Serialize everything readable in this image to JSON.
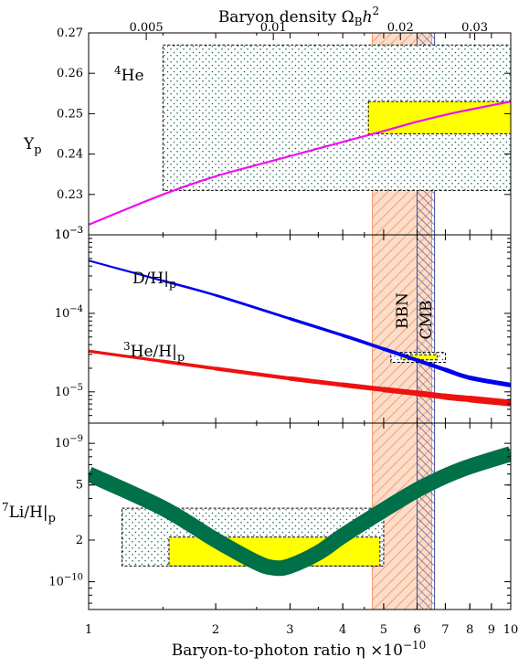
{
  "chart_data": {
    "type": "line",
    "title": "",
    "top_axis": {
      "label_text": "Baryon density",
      "label_symbol": "Ω",
      "label_sub": "B",
      "label_h": "h",
      "label_sup": "2",
      "ticks": [
        "0.005",
        "0.01",
        "0.02",
        "0.03"
      ],
      "tick_values": [
        0.005,
        0.01,
        0.02,
        0.03
      ]
    },
    "x_axis": {
      "label_text": "Baryon-to-photon ratio η",
      "label_times": "×",
      "label_exp_base": "10",
      "label_exp": "−10",
      "scale": "log",
      "xlim": [
        1,
        10
      ],
      "ticks": [
        "1",
        "2",
        "3",
        "4",
        "5",
        "6",
        "7",
        "8",
        "9",
        "10"
      ],
      "tick_values": [
        1,
        2,
        3,
        4,
        5,
        6,
        7,
        8,
        9,
        10
      ]
    },
    "vertical_bands": [
      {
        "name": "BBN",
        "x_range": [
          4.7,
          6.5
        ],
        "color": "#f29a6b"
      },
      {
        "name": "CMB",
        "x_range": [
          6.0,
          6.6
        ],
        "color": "#3a4a9a"
      }
    ],
    "panels": [
      {
        "id": "helium",
        "ylabel_main": "Y",
        "ylabel_sub": "p",
        "scale": "linear",
        "ylim": [
          0.22,
          0.27
        ],
        "ticks": [
          "0.23",
          "0.24",
          "0.25",
          "0.26",
          "0.27"
        ],
        "tick_values": [
          0.23,
          0.24,
          0.25,
          0.26,
          0.27
        ],
        "corner_tick_label": "10",
        "corner_tick_exp": "−3",
        "annotation_sup": "4",
        "annotation_text": "He",
        "series": [
          {
            "color": "#ee11ee",
            "x": [
              1,
              1.5,
              2,
              3,
              4,
              5,
              6,
              7,
              8,
              10
            ],
            "y": [
              0.2225,
              0.23,
              0.2345,
              0.2395,
              0.243,
              0.2457,
              0.248,
              0.2497,
              0.251,
              0.253
            ]
          }
        ],
        "boxes": [
          {
            "kind": "dotted",
            "x_range": [
              1.5,
              10
            ],
            "y_range": [
              0.231,
              0.267
            ]
          },
          {
            "kind": "yellow",
            "x_range": [
              4.6,
              10
            ],
            "y_range": [
              0.245,
              0.253
            ]
          }
        ]
      },
      {
        "id": "d-he3",
        "scale": "log",
        "ylim": [
          4e-06,
          0.001
        ],
        "ticks_base": [
          "10",
          "10",
          "10"
        ],
        "ticks_exp": [
          "−3",
          "−4",
          "−5"
        ],
        "tick_values": [
          0.001,
          0.0001,
          1e-05
        ],
        "series": [
          {
            "label_text": "D/H",
            "label_sub": "p",
            "color": "#0000ee",
            "x": [
              1,
              1.5,
              2,
              3,
              4,
              5,
              6,
              7,
              8,
              10
            ],
            "y": [
              0.00047,
              0.00026,
              0.00017,
              8.55e-05,
              5.25e-05,
              3.52e-05,
              2.53e-05,
              1.91e-05,
              1.51e-05,
              1.22e-05
            ]
          },
          {
            "label_sup": "3",
            "label_text": "He/H",
            "label_sub": "p",
            "color": "#ee1111",
            "x": [
              1,
              1.5,
              2,
              3,
              4,
              5,
              6,
              7,
              8,
              10
            ],
            "y": [
              3.3e-05,
              2.45e-05,
              1.98e-05,
              1.48e-05,
              1.23e-05,
              1.07e-05,
              9.6e-06,
              8.7e-06,
              8.1e-06,
              7.2e-06
            ]
          }
        ],
        "boxes": [
          {
            "kind": "dotted",
            "x_range": [
              5.2,
              7.0
            ],
            "y_range": [
              2.38e-05,
              3.18e-05
            ]
          },
          {
            "kind": "yellow",
            "x_range": [
              5.5,
              6.7
            ],
            "y_range": [
              2.56e-05,
              2.98e-05
            ]
          }
        ]
      },
      {
        "id": "lithium",
        "ylabel_sup": "7",
        "ylabel_main": "Li/H",
        "ylabel_sub": "p",
        "scale": "log",
        "ylim": [
          6.3e-11,
          1.4e-09
        ],
        "ticks": [
          "10",
          "5",
          "2",
          "10"
        ],
        "ticks_exp": [
          "−9",
          "",
          "",
          "−10"
        ],
        "tick_values": [
          1e-09,
          5e-10,
          2e-10,
          1e-10
        ],
        "series": [
          {
            "color": "#007048",
            "x": [
              1,
              1.5,
              2,
              2.5,
              2.75,
              3,
              3.5,
              4,
              5,
              6,
              7,
              8,
              10
            ],
            "y": [
              6e-10,
              3.4e-10,
              2e-10,
              1.38e-10,
              1.26e-10,
              1.3e-10,
              1.62e-10,
              2.15e-10,
              3.3e-10,
              4.6e-10,
              5.8e-10,
              6.8e-10,
              8.4e-10
            ]
          }
        ],
        "boxes": [
          {
            "kind": "dotted",
            "x_range": [
              1.2,
              5.0
            ],
            "y_range": [
              1.3e-10,
              3.4e-10
            ]
          },
          {
            "kind": "yellow",
            "x_range": [
              1.55,
              4.9
            ],
            "y_range": [
              1.3e-10,
              2.1e-10
            ]
          }
        ]
      }
    ]
  }
}
